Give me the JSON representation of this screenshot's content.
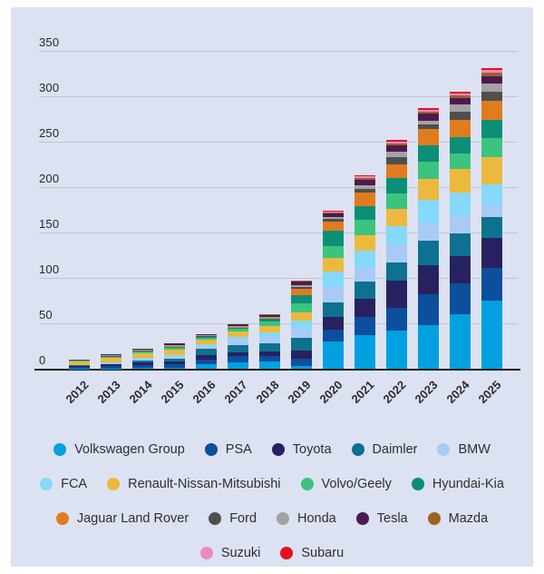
{
  "colors": {
    "page_background": "#ffffff",
    "panel_background": "#dce2f1",
    "gridline": "#bfc5d3",
    "axis_line": "#1c1c1c",
    "tick_text": "#26262b",
    "legend_text": "#2e2e33"
  },
  "chart_data": {
    "type": "bar",
    "stacked": true,
    "title": "",
    "xlabel": "",
    "ylabel": "",
    "ylim": [
      0,
      350
    ],
    "yticks": [
      0,
      50,
      100,
      150,
      200,
      250,
      300,
      350
    ],
    "grid": true,
    "legend_position": "bottom",
    "categories": [
      "2012",
      "2013",
      "2014",
      "2015",
      "2016",
      "2017",
      "2018",
      "2019",
      "2020",
      "2021",
      "2022",
      "2023",
      "2024",
      "2025"
    ],
    "series": [
      {
        "name": "Volkswagen Group",
        "color": "#00a0e1",
        "values": [
          0.5,
          0.5,
          1,
          1.5,
          5,
          7,
          8,
          3,
          30,
          37,
          42,
          48,
          60,
          75
        ]
      },
      {
        "name": "PSA",
        "color": "#0b4f9d",
        "values": [
          2,
          2.5,
          3,
          3.5,
          5,
          7,
          6,
          8,
          13,
          20,
          25,
          34,
          34,
          36
        ]
      },
      {
        "name": "Toyota",
        "color": "#27225f",
        "values": [
          1.5,
          2,
          3,
          3.5,
          5,
          4,
          5,
          9,
          14,
          20,
          30,
          32,
          30,
          33
        ]
      },
      {
        "name": "Daimler",
        "color": "#0d7191",
        "values": [
          0.5,
          1,
          2.5,
          3,
          7,
          8,
          9,
          14,
          16,
          19,
          20,
          27,
          25,
          23
        ]
      },
      {
        "name": "BMW",
        "color": "#a9cbf3",
        "values": [
          0,
          0.5,
          1,
          1.5,
          3,
          6,
          7,
          10,
          17,
          15,
          20,
          19,
          20,
          13
        ]
      },
      {
        "name": "FCA",
        "color": "#85d9fa",
        "values": [
          0,
          0.5,
          1.5,
          2,
          2,
          3,
          5,
          9,
          17,
          19,
          20,
          26,
          25,
          23
        ]
      },
      {
        "name": "Renault-Nissan-Mitsubishi",
        "color": "#ecb93e",
        "values": [
          4,
          5,
          5,
          6,
          5,
          6,
          7,
          9,
          15,
          17,
          19,
          23,
          26,
          30
        ]
      },
      {
        "name": "Volvo/Geely",
        "color": "#3bc47e",
        "values": [
          1,
          1.5,
          2,
          2.5,
          2.5,
          3,
          5,
          10,
          13,
          17,
          17,
          19,
          17,
          21
        ]
      },
      {
        "name": "Hyundai-Kia",
        "color": "#0c8f76",
        "values": [
          0,
          0.5,
          1,
          1.5,
          1,
          2,
          3,
          9,
          17,
          15,
          17,
          18,
          18,
          20
        ]
      },
      {
        "name": "Jaguar Land Rover",
        "color": "#e07c1e",
        "values": [
          0,
          0,
          0,
          0.5,
          0.5,
          0.5,
          1.5,
          7,
          10,
          15,
          15,
          18,
          19,
          21
        ]
      },
      {
        "name": "Ford",
        "color": "#4f4f4f",
        "values": [
          0.5,
          0.5,
          0.5,
          0.5,
          0.5,
          0.5,
          0.5,
          2,
          3,
          4,
          8,
          5,
          9,
          10
        ]
      },
      {
        "name": "Honda",
        "color": "#a3a3a3",
        "values": [
          0,
          0.5,
          0.5,
          0.5,
          0.5,
          0.5,
          0.5,
          2,
          2,
          4,
          6,
          4,
          8,
          9
        ]
      },
      {
        "name": "Tesla",
        "color": "#4c1a52",
        "values": [
          0,
          1,
          1,
          1.5,
          1.5,
          1.5,
          2,
          4,
          4,
          6,
          7,
          8,
          7,
          8
        ]
      },
      {
        "name": "Mazda",
        "color": "#9c6320",
        "values": [
          0,
          0,
          0,
          0,
          0,
          0,
          0.5,
          1,
          1,
          2,
          2,
          2,
          3,
          4
        ]
      },
      {
        "name": "Suzuki",
        "color": "#ea8bc0",
        "values": [
          0,
          0,
          0,
          0,
          0,
          0,
          0,
          0,
          1,
          2,
          2,
          2,
          2,
          3
        ]
      },
      {
        "name": "Subaru",
        "color": "#e8101c",
        "values": [
          0,
          0,
          0,
          0,
          0,
          0,
          0,
          0,
          1,
          1,
          2,
          2,
          2,
          2
        ]
      }
    ],
    "legend_rows": [
      [
        0,
        1,
        2,
        3,
        4
      ],
      [
        5,
        6,
        7,
        8
      ],
      [
        9,
        10,
        11,
        12,
        13
      ],
      [
        14,
        15
      ]
    ]
  }
}
